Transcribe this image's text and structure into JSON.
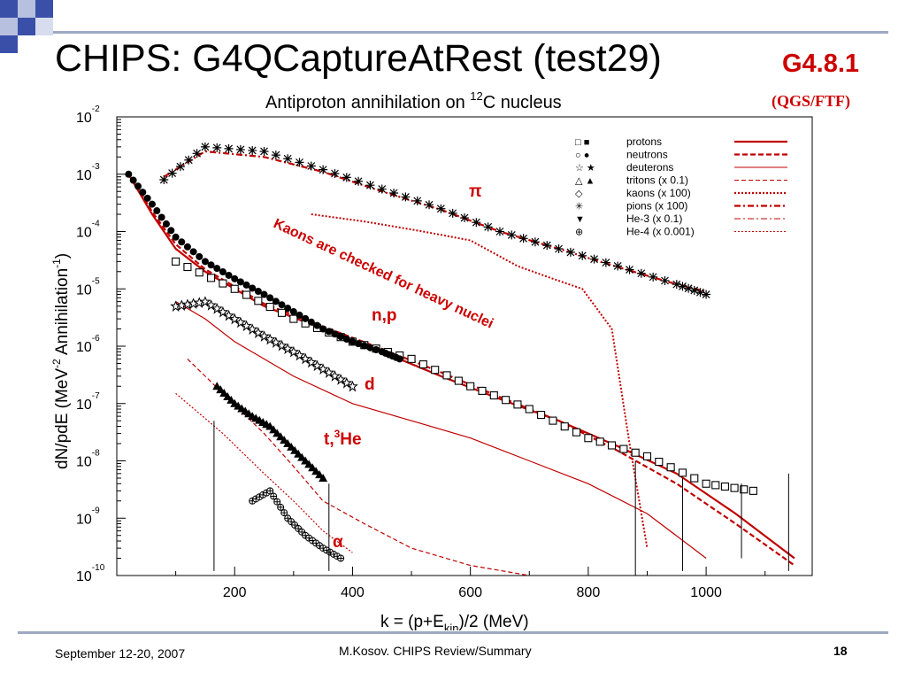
{
  "slide": {
    "title": "CHIPS: G4QCaptureAtRest (test29)",
    "version": "G4.8.1",
    "version_sub": "(QGS/FTF)",
    "footer_date": "September 12-20, 2007",
    "footer_author": "M.Kosov. CHIPS Review/Summary",
    "page_number": "18"
  },
  "colors": {
    "accent_red": "#cc0000",
    "model_red": "#c00000",
    "deco_blue": "#3a4fa8",
    "deco_light": "#b8c0e0"
  },
  "chart_data": {
    "type": "scatter",
    "title_parts": {
      "pre": "Antiproton annihilation on ",
      "sup": "12",
      "post": "C nucleus"
    },
    "xlabel_parts": {
      "pre": "k = (p+E",
      "sub": "kin",
      "post": ")/2 (MeV)"
    },
    "ylabel_parts": {
      "a": "dN/pdE (MeV",
      "sup1": "-2",
      "b": " Annihilation",
      "sup2": "-1",
      "c": ")"
    },
    "x_range": [
      0,
      1180
    ],
    "x_ticks": [
      "200",
      "400",
      "600",
      "800",
      "1000"
    ],
    "y_scale": "log",
    "y_range": [
      1e-10,
      0.01
    ],
    "y_ticks": [
      {
        "base": "10",
        "exp": "-2"
      },
      {
        "base": "10",
        "exp": "-3"
      },
      {
        "base": "10",
        "exp": "-4"
      },
      {
        "base": "10",
        "exp": "-5"
      },
      {
        "base": "10",
        "exp": "-6"
      },
      {
        "base": "10",
        "exp": "-7"
      },
      {
        "base": "10",
        "exp": "-8"
      },
      {
        "base": "10",
        "exp": "-9"
      },
      {
        "base": "10",
        "exp": "-10"
      }
    ],
    "legend_position": "top-right",
    "legend": [
      {
        "marker": "□ ■",
        "label": "protons",
        "line": "solid-thick"
      },
      {
        "marker": "○ ●",
        "label": "neutrons",
        "line": "dashed-thick"
      },
      {
        "marker": "☆ ★",
        "label": "deuterons",
        "line": "solid-thin"
      },
      {
        "marker": "△ ▲",
        "label": "tritons (x 0.1)",
        "line": "dashed-thin"
      },
      {
        "marker": "◇",
        "label": "kaons (x 100)",
        "line": "dotted-thick"
      },
      {
        "marker": "✳",
        "label": "pions (x 100)",
        "line": "dashdot-thick"
      },
      {
        "marker": "▼",
        "label": "He-3 (x 0.1)",
        "line": "dashdot-thin"
      },
      {
        "marker": "⊕",
        "label": "He-4 (x 0.001)",
        "line": "dotted-thin"
      }
    ],
    "annotations": {
      "pi": "π",
      "np": "n,p",
      "d": "d",
      "t_pre": "t,",
      "t_sup": "3",
      "t_post": "He",
      "alpha": "α",
      "kaons": "Kaons are checked for heavy nuclei"
    },
    "series": [
      {
        "name": "pions (x 100)",
        "marker": "asterisk",
        "x": [
          80,
          150,
          250,
          350,
          450,
          550,
          650,
          750,
          850,
          950,
          1000
        ],
        "y": [
          0.0008,
          0.003,
          0.0025,
          0.0012,
          0.00055,
          0.00025,
          0.0001,
          5e-05,
          2.5e-05,
          1.2e-05,
          8e-06
        ]
      },
      {
        "name": "protons",
        "marker": "square-open",
        "x": [
          100,
          200,
          300,
          400,
          500,
          600,
          700,
          800,
          900,
          1000,
          1080
        ],
        "y": [
          3e-05,
          1e-05,
          3e-06,
          1.2e-06,
          6e-07,
          2e-07,
          8e-08,
          2.5e-08,
          1.2e-08,
          4e-09,
          3e-09
        ]
      },
      {
        "name": "neutrons",
        "marker": "circle-filled",
        "x": [
          20,
          60,
          100,
          150,
          200,
          250,
          300,
          350,
          400,
          450,
          480
        ],
        "y": [
          0.001,
          0.0003,
          8e-05,
          3e-05,
          1.5e-05,
          8e-06,
          4e-06,
          2e-06,
          1.2e-06,
          8e-07,
          6e-07
        ]
      },
      {
        "name": "deuterons",
        "marker": "star-open",
        "x": [
          100,
          150,
          200,
          250,
          300,
          350,
          400
        ],
        "y": [
          5e-06,
          6e-06,
          3e-06,
          1.5e-06,
          8e-07,
          4e-07,
          2e-07
        ]
      },
      {
        "name": "tritons (x 0.1)",
        "marker": "triangle-filled",
        "x": [
          170,
          200,
          230,
          260,
          290,
          320,
          350
        ],
        "y": [
          2e-07,
          1e-07,
          6e-08,
          4e-08,
          2e-08,
          1e-08,
          5e-09
        ]
      },
      {
        "name": "He-4 (x 0.001)",
        "marker": "plus-circle",
        "x": [
          230,
          260,
          290,
          320,
          350,
          380
        ],
        "y": [
          2e-09,
          3e-09,
          1e-09,
          5e-10,
          3e-10,
          2e-10
        ]
      }
    ]
  }
}
